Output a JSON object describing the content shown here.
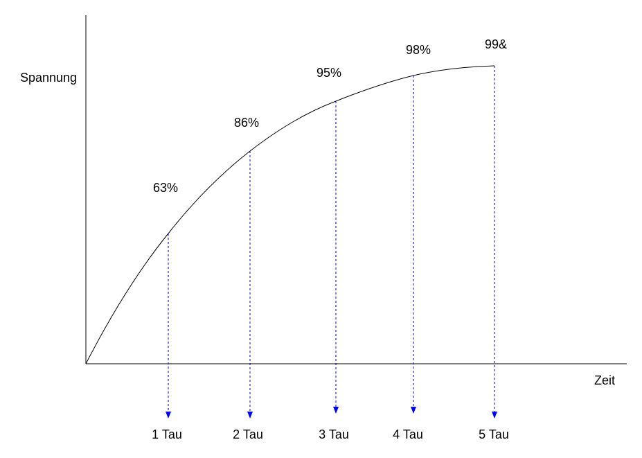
{
  "axes": {
    "y_label": "Spannung",
    "x_label": "Zeit"
  },
  "markers": [
    {
      "percent": "63%",
      "tau": "1 Tau"
    },
    {
      "percent": "86%",
      "tau": "2 Tau"
    },
    {
      "percent": "95%",
      "tau": "3 Tau"
    },
    {
      "percent": "98%",
      "tau": "4 Tau"
    },
    {
      "percent": "99&",
      "tau": "5 Tau"
    }
  ]
}
